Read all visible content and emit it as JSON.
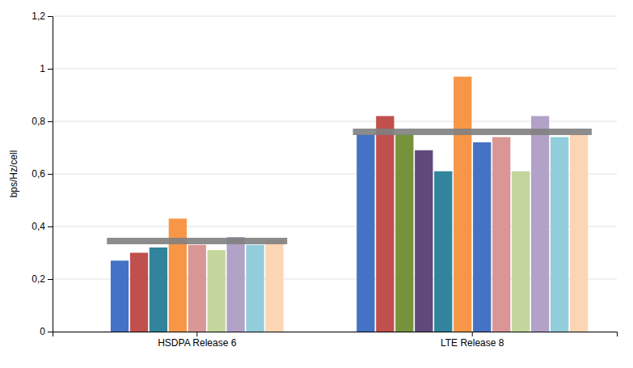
{
  "chart_data": {
    "type": "bar",
    "categories": [
      "HSDPA Release 6",
      "LTE Release 8"
    ],
    "values": [
      [
        0.27,
        0.3,
        0.32,
        0.43,
        0.33,
        0.31,
        0.36,
        0.33,
        0.35
      ],
      [
        0.75,
        0.82,
        0.75,
        0.69,
        0.61,
        0.97,
        0.72,
        0.74,
        0.61,
        0.82,
        0.74,
        0.75
      ]
    ],
    "colors": [
      [
        "#4472C4",
        "#C0504D",
        "#31849B",
        "#F79646",
        "#D99694",
        "#C3D69B",
        "#B2A2C7",
        "#92CDDC",
        "#FCD5B4"
      ],
      [
        "#4472C4",
        "#C0504D",
        "#76933C",
        "#604A7B",
        "#31849B",
        "#F79646",
        "#4472C4",
        "#D99694",
        "#C3D69B",
        "#B2A2C7",
        "#92CDDC",
        "#FCD5B4"
      ]
    ],
    "reference_lines": {
      "values": [
        0.345,
        0.76
      ],
      "color": "#7F7F7F"
    },
    "ylabel": "bps/Hz/cell",
    "ylim": [
      0,
      1.2
    ],
    "yticks": [
      0,
      {
        "value": 0.2,
        "label": "0,2"
      },
      {
        "value": 0.4,
        "label": "0,4"
      },
      {
        "value": 0.6,
        "label": "0,6"
      },
      {
        "value": 0.8,
        "label": "0,8"
      },
      1,
      {
        "value": 1.2,
        "label": "1,2"
      }
    ],
    "grid": true
  }
}
